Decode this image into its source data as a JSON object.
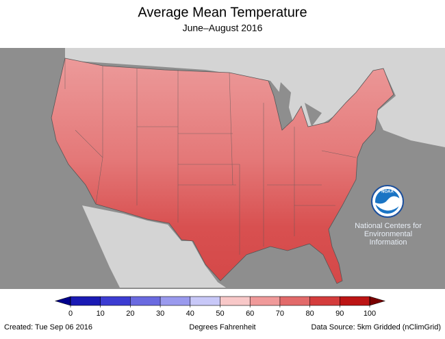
{
  "header": {
    "title": "Average Mean Temperature",
    "subtitle": "June–August 2016"
  },
  "legend": {
    "ticks": [
      0,
      10,
      20,
      30,
      40,
      50,
      60,
      70,
      80,
      90,
      100
    ],
    "colors": [
      "#1a1ab4",
      "#3c3cd2",
      "#6a6ae0",
      "#9a9aee",
      "#c8c8f8",
      "#f8c8c8",
      "#f09a9a",
      "#e26a6a",
      "#d43c3c",
      "#bc1414"
    ],
    "below_color": "#00008c",
    "above_color": "#7a0000",
    "label": "Degrees Fahrenheit"
  },
  "logo": {
    "text": "NOAA",
    "caption": [
      "National Centers for",
      "Environmental",
      "Information"
    ]
  },
  "footer": {
    "created": "Created: Tue Sep 06 2016",
    "source": "Data Source: 5km Gridded (nClimGrid)"
  }
}
